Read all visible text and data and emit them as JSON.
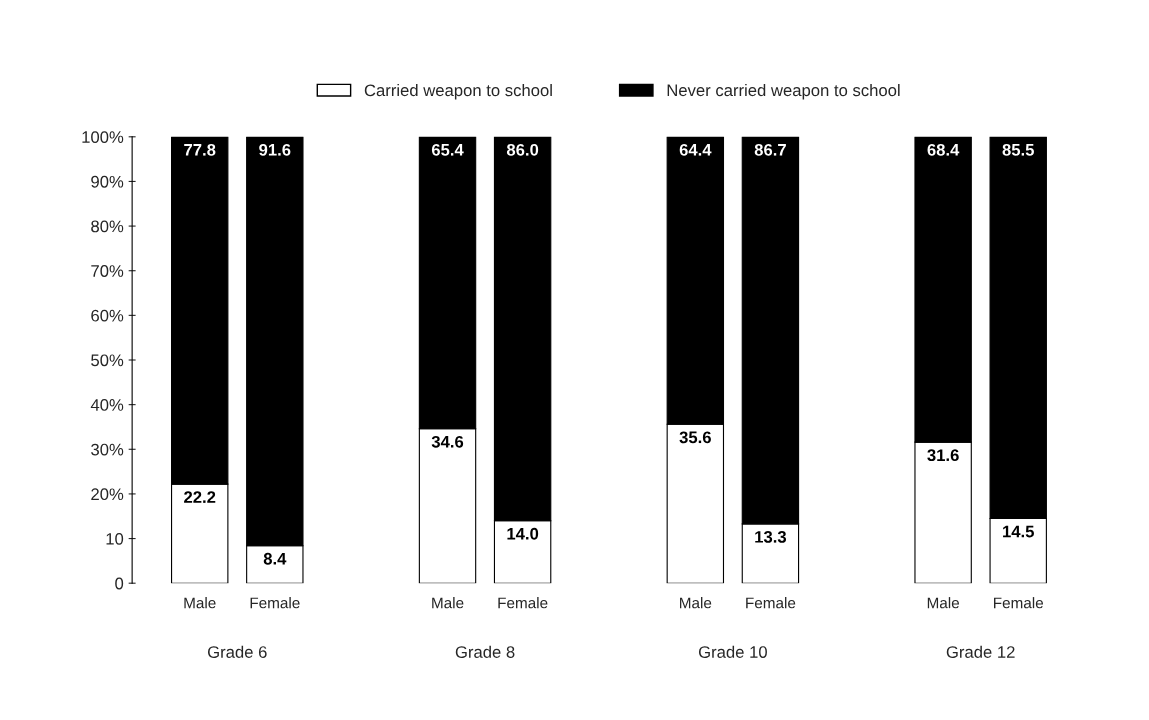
{
  "chart_data": {
    "type": "bar",
    "stacked": true,
    "categories": [
      "Male",
      "Female",
      "Male",
      "Female",
      "Male",
      "Female",
      "Male",
      "Female"
    ],
    "series": [
      {
        "name": "Carried weapon to school",
        "color": "#ffffff",
        "values": [
          22.2,
          8.4,
          34.6,
          14.0,
          35.6,
          13.3,
          31.6,
          14.5
        ],
        "value_labels": [
          "22.2",
          "8.4",
          "34.6",
          "14.0",
          "35.6",
          "13.3",
          "31.6",
          "14.5"
        ]
      },
      {
        "name": "Never carried weapon to school",
        "color": "#000000",
        "values": [
          77.8,
          91.6,
          65.4,
          86.0,
          64.4,
          86.7,
          68.4,
          85.5
        ],
        "value_labels": [
          "77.8",
          "91.6",
          "65.4",
          "86.0",
          "64.4",
          "86.7",
          "68.4",
          "85.5"
        ]
      }
    ],
    "ylim": [
      0,
      100
    ],
    "yticks": [
      {
        "value": 0,
        "label": "0"
      },
      {
        "value": 10,
        "label": "10"
      },
      {
        "value": 20,
        "label": "20%"
      },
      {
        "value": 30,
        "label": "30%"
      },
      {
        "value": 40,
        "label": "40%"
      },
      {
        "value": 50,
        "label": "50%"
      },
      {
        "value": 60,
        "label": "60%"
      },
      {
        "value": 70,
        "label": "70%"
      },
      {
        "value": 80,
        "label": "80%"
      },
      {
        "value": 90,
        "label": "90%"
      },
      {
        "value": 100,
        "label": "100%"
      }
    ],
    "annotations": [
      "Grade 6",
      "Grade 8",
      "Grade 10",
      "Grade 12"
    ],
    "legend": "top",
    "grid": false
  }
}
